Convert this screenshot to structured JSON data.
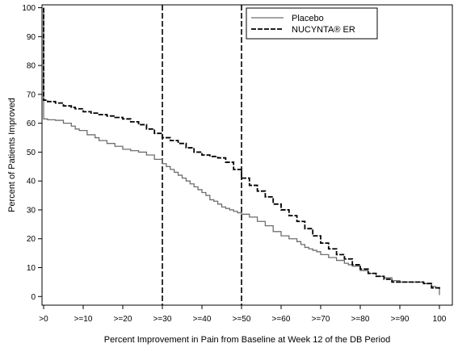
{
  "chart_data": {
    "type": "line",
    "title": "",
    "xlabel": "Percent Improvement in Pain from Baseline at Week 12 of the DB Period",
    "ylabel": "Percent of Patients Improved",
    "xlim": [
      0,
      100
    ],
    "ylim": [
      -3,
      101
    ],
    "grid": false,
    "legend_position": "top-right",
    "x_ticks": [
      {
        "value": 0,
        "label": ">0"
      },
      {
        "value": 10,
        "label": ">=10"
      },
      {
        "value": 20,
        "label": ">=20"
      },
      {
        "value": 30,
        "label": ">=30"
      },
      {
        "value": 40,
        "label": ">=40"
      },
      {
        "value": 50,
        "label": ">=50"
      },
      {
        "value": 60,
        "label": ">=60"
      },
      {
        "value": 70,
        "label": ">=70"
      },
      {
        "value": 80,
        "label": ">=80"
      },
      {
        "value": 90,
        "label": ">=90"
      },
      {
        "value": 100,
        "label": "100"
      }
    ],
    "y_ticks": [
      0,
      10,
      20,
      30,
      40,
      50,
      60,
      70,
      80,
      90,
      100
    ],
    "reference_lines_x": [
      30,
      50
    ],
    "series": [
      {
        "name": "Placebo",
        "color": "#6e6e6e",
        "dash": "solid",
        "x": [
          0,
          0,
          1,
          3,
          5,
          7,
          8,
          9,
          11,
          13,
          14,
          16,
          18,
          20,
          22,
          24,
          26,
          28,
          30,
          31,
          32,
          33,
          34,
          35,
          36,
          37,
          38,
          39,
          40,
          41,
          42,
          43,
          44,
          45,
          46,
          47,
          48,
          49,
          50,
          52,
          54,
          56,
          58,
          60,
          62,
          64,
          65,
          66,
          67,
          68,
          69,
          70,
          72,
          74,
          76,
          77,
          78,
          80,
          82,
          84,
          86,
          88,
          90,
          92,
          94,
          96,
          98,
          99,
          100
        ],
        "y": [
          100,
          61.5,
          61.2,
          61,
          60,
          59,
          58,
          57.5,
          56,
          55,
          54,
          53,
          52,
          51,
          50.5,
          50,
          49,
          47.5,
          46,
          45,
          44,
          43,
          42,
          41,
          40,
          39,
          38,
          37,
          36,
          35,
          33.5,
          33,
          32,
          31,
          30.5,
          30,
          29.5,
          29,
          28.5,
          27.5,
          26,
          24.5,
          22.5,
          21,
          20,
          19,
          18,
          17,
          16.5,
          16,
          15.5,
          14.5,
          13.5,
          12.5,
          11.5,
          11,
          10.5,
          9,
          8,
          7,
          6.5,
          5.5,
          5,
          5,
          5,
          4.5,
          3.5,
          3,
          0.5
        ]
      },
      {
        "name": "NUCYNTA® ER",
        "color": "#000000",
        "dash": "dashed",
        "x": [
          0,
          0,
          1,
          3,
          5,
          7,
          8,
          10,
          12,
          14,
          16,
          18,
          20,
          22,
          24,
          26,
          28,
          30,
          32,
          34,
          36,
          38,
          40,
          42,
          44,
          46,
          48,
          50,
          52,
          54,
          56,
          58,
          60,
          62,
          64,
          66,
          68,
          70,
          72,
          74,
          76,
          78,
          80,
          82,
          84,
          86,
          88,
          90,
          92,
          94,
          96,
          98,
          100
        ],
        "y": [
          100,
          68,
          67.5,
          67,
          66,
          65.5,
          65,
          64,
          63.5,
          63,
          62.5,
          62,
          61.5,
          60.5,
          59.5,
          58,
          56.5,
          55,
          54,
          53,
          51.5,
          50,
          49,
          48.5,
          48,
          46.5,
          44,
          41,
          38.5,
          36.5,
          34.5,
          32,
          30,
          28,
          26,
          23.5,
          21,
          18.5,
          16.5,
          14.5,
          13,
          11,
          9.5,
          8,
          7,
          6,
          5,
          5,
          5,
          5,
          4.5,
          3,
          2.5
        ]
      }
    ]
  }
}
